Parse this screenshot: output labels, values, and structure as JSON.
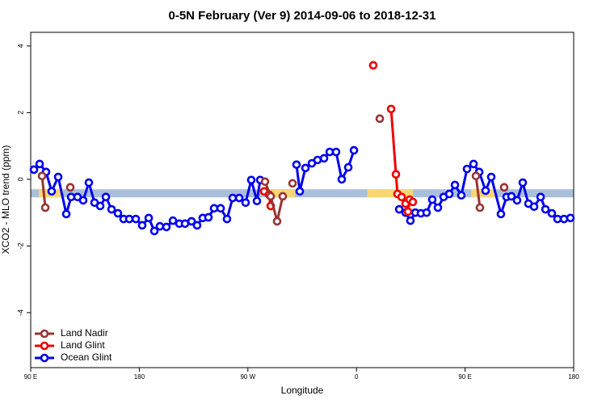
{
  "chart_data": {
    "type": "line",
    "title": "0-5N February (Ver 9)   2014-09-06 to 2018-12-31",
    "x_label": "Longitude",
    "y_label": "XCO2 - MLO trend (ppm)",
    "xlim": [
      90,
      540
    ],
    "ylim": [
      -5.65,
      4.41
    ],
    "xticks": [
      {
        "value": 90,
        "label": "90 E"
      },
      180,
      {
        "value": 270,
        "label": "90 W"
      },
      {
        "value": 360,
        "label": "0"
      },
      {
        "value": 450,
        "label": "90 E"
      },
      {
        "value": 540,
        "label": "180"
      }
    ],
    "yticks": [
      -4,
      -2,
      0,
      2,
      4
    ],
    "legend": "bottom-left",
    "reference_band": {
      "value": -0.42,
      "color": "#a9bfdc",
      "highlight_color": "#f7d774",
      "highlight_ranges": [
        [
          96.7,
          116.8
        ],
        [
          285.5,
          309
        ],
        [
          369,
          407
        ],
        [
          455,
          476
        ]
      ]
    },
    "series": [
      {
        "name": "Land Nadir",
        "color": "#993333",
        "x": [
          99.4,
          102.1,
          null,
          122.8,
          null,
          284.2,
          288.9,
          294.2,
          298.9,
          null,
          307.0,
          null,
          379.3,
          null,
          459.0,
          462.3,
          null,
          482.4
        ],
        "values": [
          0.1,
          -0.85,
          null,
          -0.24,
          null,
          -0.07,
          -0.51,
          -1.26,
          -0.51,
          null,
          -0.12,
          null,
          1.82,
          null,
          0.1,
          -0.85,
          null,
          -0.24
        ]
      },
      {
        "name": "Land Glint",
        "color": "#ee0000",
        "x": [
          283.5,
          287.5,
          288.9,
          null,
          373.9,
          null,
          388.7,
          392.7,
          394.0,
          397.4,
          400.7,
          402.7,
          404.1,
          406.7
        ],
        "values": [
          -0.36,
          -0.46,
          -0.8,
          null,
          3.42,
          null,
          2.11,
          0.15,
          -0.44,
          -0.53,
          -0.73,
          -0.97,
          -0.61,
          -0.68
        ]
      },
      {
        "name": "Ocean Glint",
        "color": "#0000ee",
        "x": [
          92.7,
          97.4,
          102.7,
          107.4,
          112.8,
          119.5,
          123.5,
          128.8,
          133.5,
          138.2,
          142.9,
          147.6,
          152.3,
          157.0,
          162.3,
          167.0,
          171.7,
          177.1,
          182.4,
          187.8,
          192.5,
          197.1,
          202.5,
          207.9,
          213.2,
          217.9,
          223.3,
          227.9,
          232.6,
          237.3,
          242.0,
          247.4,
          252.7,
          257.4,
          262.8,
          268.1,
          272.8,
          277.5,
          280.2,
          null,
          310.3,
          313.0,
          317.7,
          323.0,
          327.7,
          333.1,
          337.8,
          343.1,
          347.8,
          353.2,
          357.9,
          null,
          395.4,
          400.7,
          404.7,
          408.8,
          413.4,
          418.1,
          422.8,
          427.5,
          432.2,
          436.9,
          441.6,
          446.9,
          451.6,
          457.0,
          461.7,
          467.0,
          471.7,
          479.7,
          484.4,
          488.4,
          493.1,
          497.8,
          502.5,
          507.2,
          512.6,
          516.6,
          521.9,
          526.6,
          532.0,
          537.3
        ],
        "values": [
          0.29,
          0.46,
          0.22,
          -0.36,
          0.07,
          -1.04,
          -0.53,
          -0.53,
          -0.63,
          -0.1,
          -0.7,
          -0.8,
          -0.53,
          -0.9,
          -1.02,
          -1.19,
          -1.19,
          -1.19,
          -1.38,
          -1.16,
          -1.55,
          -1.41,
          -1.43,
          -1.24,
          -1.33,
          -1.33,
          -1.26,
          -1.38,
          -1.16,
          -1.14,
          -0.87,
          -0.87,
          -1.19,
          -0.56,
          -0.56,
          -0.7,
          -0.02,
          -0.65,
          -0.02,
          null,
          0.44,
          -0.36,
          0.34,
          0.48,
          0.58,
          0.63,
          0.82,
          0.82,
          0.0,
          0.36,
          0.87,
          null,
          -0.9,
          -1.0,
          -1.24,
          -1.0,
          -1.02,
          -1.0,
          -0.61,
          -0.85,
          -0.53,
          -0.44,
          -0.17,
          -0.48,
          0.31,
          0.46,
          0.22,
          -0.34,
          0.07,
          -1.04,
          -0.53,
          -0.51,
          -0.63,
          -0.1,
          -0.73,
          -0.82,
          -0.53,
          -0.9,
          -1.02,
          -1.19,
          -1.19,
          -1.16
        ]
      }
    ]
  }
}
